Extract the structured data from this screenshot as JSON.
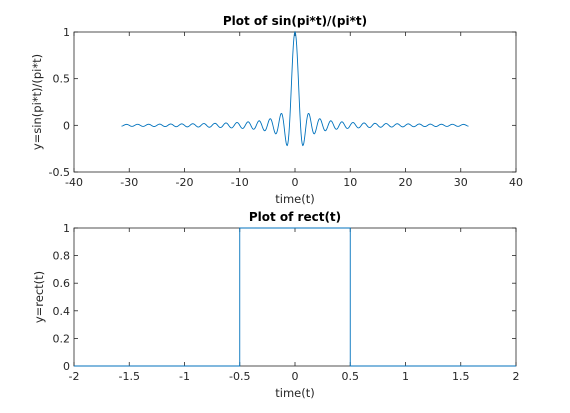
{
  "colors": {
    "line": "#0072bd",
    "axis": "#262626",
    "background": "#ffffff"
  },
  "chart_data": [
    {
      "type": "line",
      "title": "Plot of sin(pi*t)/(pi*t)",
      "xlabel": "time(t)",
      "ylabel": "y=sin(pi*t)/(pi*t)",
      "xlim": [
        -40,
        40
      ],
      "ylim": [
        -0.5,
        1
      ],
      "x_ticks": [
        "-40",
        "-30",
        "-20",
        "-10",
        "0",
        "10",
        "20",
        "30",
        "40"
      ],
      "y_ticks": [
        "-0.5",
        "0",
        "0.5",
        "1"
      ],
      "grid": false,
      "series": [
        {
          "function": "sin(pi*t)/(pi*t)",
          "x_range": [
            -31.4,
            31.4
          ],
          "step": 0.1,
          "color": "#0072bd"
        }
      ]
    },
    {
      "type": "line",
      "title": "Plot of rect(t)",
      "xlabel": "time(t)",
      "ylabel": "y=rect(t)",
      "xlim": [
        -2,
        2
      ],
      "ylim": [
        0,
        1
      ],
      "x_ticks": [
        "-2",
        "-1.5",
        "-1",
        "-0.5",
        "0",
        "0.5",
        "1",
        "1.5",
        "2"
      ],
      "y_ticks": [
        "0",
        "0.2",
        "0.4",
        "0.6",
        "0.8",
        "1"
      ],
      "grid": false,
      "series": [
        {
          "function": "rect(t)",
          "x": [
            -2,
            -0.5,
            -0.5,
            0.5,
            0.5,
            2
          ],
          "y": [
            0,
            0,
            1,
            1,
            0,
            0
          ],
          "color": "#0072bd"
        }
      ]
    }
  ]
}
